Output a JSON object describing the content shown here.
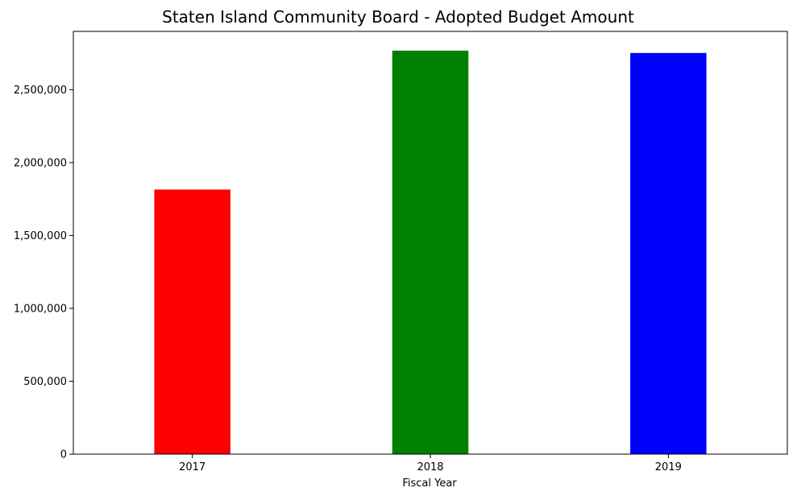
{
  "chart_data": {
    "type": "bar",
    "title": "Staten Island Community Board - Adopted Budget Amount",
    "xlabel": "Fiscal Year",
    "ylabel": "",
    "categories": [
      "2017",
      "2018",
      "2019"
    ],
    "values": [
      1815000,
      2768000,
      2752000
    ],
    "colors": [
      "#ff0000",
      "#008000",
      "#0000ff"
    ],
    "ylim": [
      0,
      2900000
    ],
    "yticks": [
      0,
      500000,
      1000000,
      1500000,
      2000000,
      2500000
    ],
    "ytick_labels": [
      "0",
      "500,000",
      "1,000,000",
      "1,500,000",
      "2,000,000",
      "2,500,000"
    ],
    "grid": false,
    "legend": "none"
  }
}
